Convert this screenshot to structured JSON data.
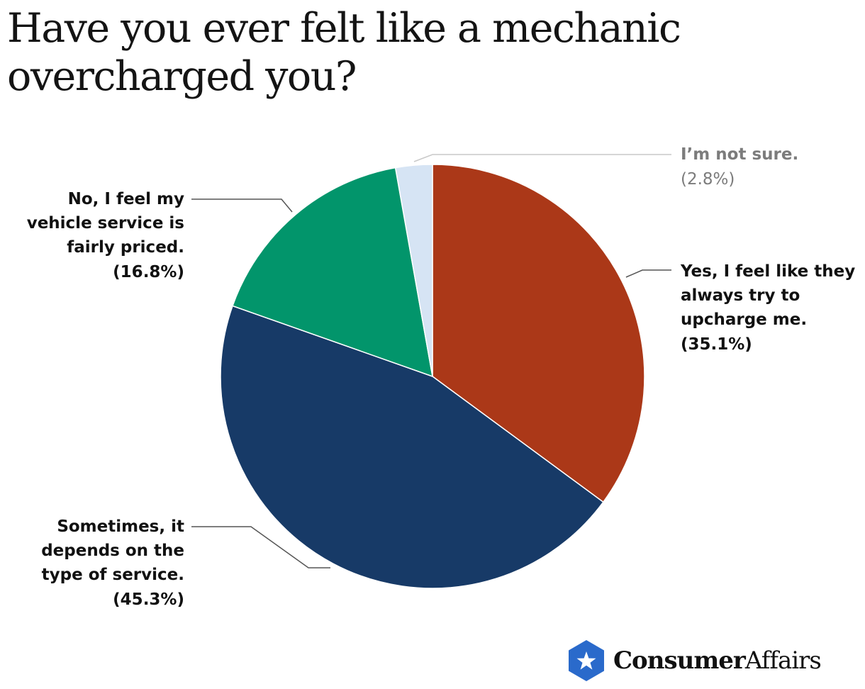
{
  "title": "Have you ever felt like a mechanic overcharged you?",
  "brand": {
    "name_bold": "Consumer",
    "name_light": "Affairs",
    "badge_color": "#2a6acb"
  },
  "chart_data": {
    "type": "pie",
    "start_angle_deg": 0,
    "direction": "clockwise",
    "slices": [
      {
        "label": "Yes, I feel like they always try to upcharge me.",
        "label_lines": [
          "Yes, I feel like they",
          "always try to",
          "upcharge me.",
          "(35.1%)"
        ],
        "value": 35.1,
        "color": "#ab3818",
        "label_side": "right"
      },
      {
        "label": "Sometimes, it depends on the type of service.",
        "label_lines": [
          "Sometimes, it",
          "depends on the",
          "type of service.",
          "(45.3%)"
        ],
        "value": 45.3,
        "color": "#173a67",
        "label_side": "left"
      },
      {
        "label": "No, I feel my vehicle service is fairly priced.",
        "label_lines": [
          "No, I feel my",
          "vehicle service is",
          "fairly priced.",
          "(16.8%)"
        ],
        "value": 16.8,
        "color": "#02956b",
        "label_side": "left"
      },
      {
        "label": "I’m not sure.",
        "label_lines": [
          "I’m not sure.",
          "(2.8%)"
        ],
        "value": 2.8,
        "color": "#d6e4f4",
        "label_side": "right",
        "muted": true
      }
    ]
  }
}
